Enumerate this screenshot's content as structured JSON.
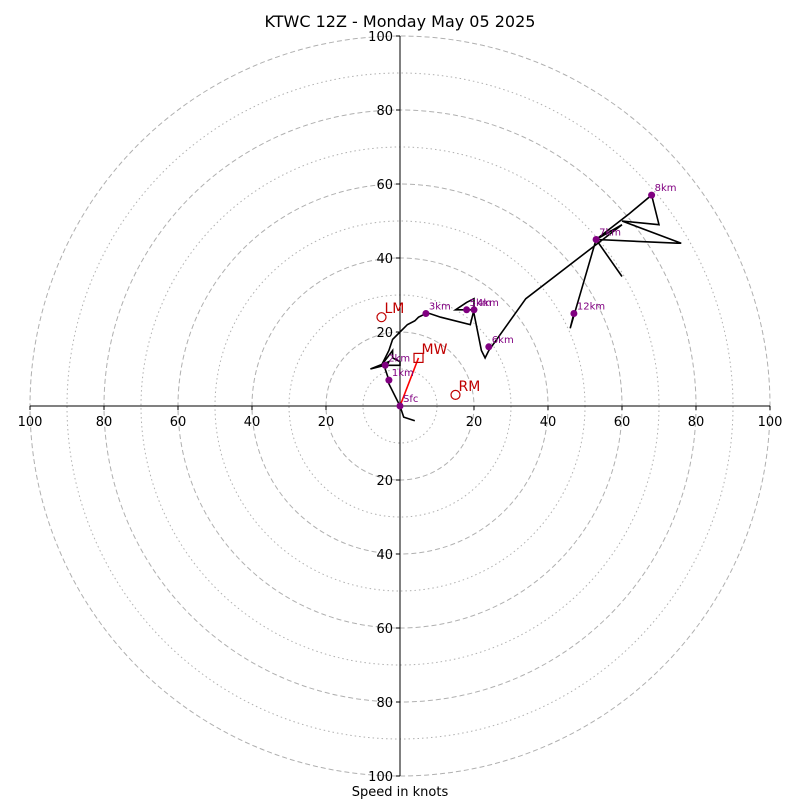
{
  "chart_data": {
    "type": "scatter",
    "title": "KTWC 12Z - Monday May 05 2025",
    "xlabel": "Speed in knots",
    "ylabel": "",
    "xlim": [
      -100,
      100
    ],
    "ylim": [
      -100,
      100
    ],
    "ring_interval": 10,
    "major_ring_interval": 20,
    "tick_labels": [
      "20",
      "40",
      "60",
      "80",
      "100"
    ],
    "tick_values": [
      20,
      40,
      60,
      80,
      100
    ],
    "colors": {
      "trace": "#000000",
      "height_marker": "#800080",
      "motion": "#c00000",
      "mean_wind_vector": "#ff0000",
      "grid": "#b0b0b0"
    },
    "hodograph": [
      [
        4,
        -4
      ],
      [
        1,
        -3
      ],
      [
        0,
        0
      ],
      [
        -1,
        2
      ],
      [
        -3,
        6
      ],
      [
        -3,
        7
      ],
      [
        -4,
        10
      ],
      [
        -3,
        12
      ],
      [
        -8,
        10
      ],
      [
        -4,
        11
      ],
      [
        0,
        11
      ],
      [
        0,
        12
      ],
      [
        -2,
        13
      ],
      [
        -2,
        15
      ],
      [
        -5,
        11
      ],
      [
        -3,
        15
      ],
      [
        -2,
        18
      ],
      [
        0,
        20
      ],
      [
        2,
        22
      ],
      [
        4,
        23
      ],
      [
        5,
        24
      ],
      [
        7,
        25
      ],
      [
        8,
        25
      ],
      [
        11,
        24
      ],
      [
        19,
        22
      ],
      [
        20,
        26
      ],
      [
        15,
        26
      ],
      [
        18,
        28
      ],
      [
        20,
        29
      ],
      [
        20,
        25
      ],
      [
        22,
        15
      ],
      [
        23,
        13
      ],
      [
        24,
        15
      ],
      [
        34,
        29
      ],
      [
        60,
        49
      ],
      [
        53,
        45
      ],
      [
        60,
        35
      ],
      [
        53,
        45
      ],
      [
        75,
        44
      ],
      [
        76,
        44
      ],
      [
        60,
        50
      ],
      [
        70,
        49
      ],
      [
        68,
        57
      ],
      [
        62,
        52
      ],
      [
        53,
        45
      ],
      [
        46,
        21
      ],
      [
        47,
        25
      ]
    ],
    "height_markers": [
      {
        "label": "Sfc",
        "x": 0,
        "y": 0
      },
      {
        "label": "1km",
        "x": -3,
        "y": 7
      },
      {
        "label": "2km",
        "x": -4,
        "y": 11
      },
      {
        "label": "3km",
        "x": 7,
        "y": 25
      },
      {
        "label": "4km",
        "x": 20,
        "y": 26
      },
      {
        "label": "5km",
        "x": 18,
        "y": 26
      },
      {
        "label": "6km",
        "x": 24,
        "y": 16
      },
      {
        "label": "7km",
        "x": 53,
        "y": 45
      },
      {
        "label": "8km",
        "x": 68,
        "y": 57
      },
      {
        "label": "12km",
        "x": 47,
        "y": 25
      }
    ],
    "storm_motion": [
      {
        "label": "LM",
        "x": -5,
        "y": 24,
        "marker": "circle"
      },
      {
        "label": "MW",
        "x": 5,
        "y": 13,
        "marker": "square"
      },
      {
        "label": "RM",
        "x": 15,
        "y": 3,
        "marker": "circle"
      }
    ],
    "mean_wind_vector": {
      "from": [
        0,
        0
      ],
      "to": [
        5,
        13
      ]
    }
  }
}
